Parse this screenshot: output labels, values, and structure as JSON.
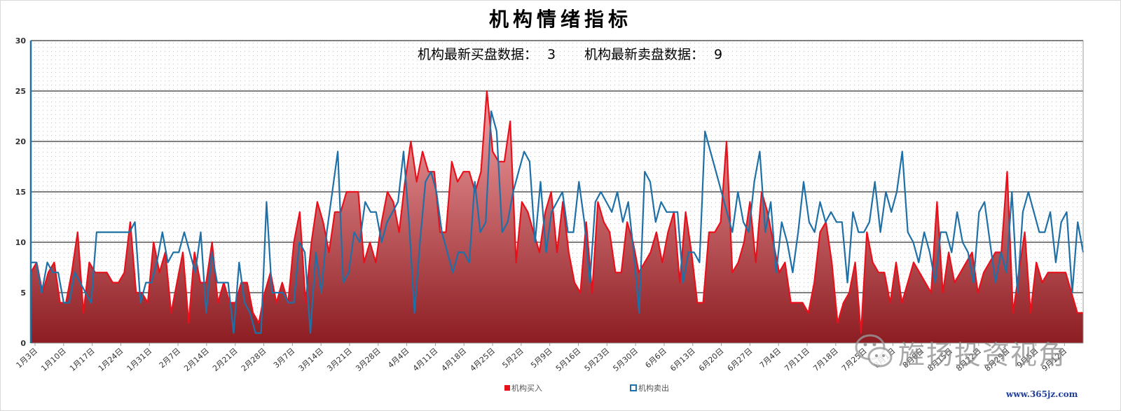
{
  "title": "机构情绪指标",
  "subtitle": {
    "buy_label": "机构最新买盘数据：",
    "buy_value": "3",
    "sell_label": "机构最新卖盘数据：",
    "sell_value": "9"
  },
  "watermark": {
    "name": "旌扬投资视角",
    "site": "www.365jz.com"
  },
  "colors": {
    "buy": "#e8101a",
    "buy_fill_top": "#f6a3a6",
    "buy_fill_bottom": "#8c1d22",
    "sell": "#1f70a6"
  },
  "chart_data": {
    "type": "area",
    "ylim": [
      0,
      30
    ],
    "yticks": [
      0,
      5,
      10,
      15,
      20,
      25,
      30
    ],
    "grid": true,
    "legend": "bottom",
    "xticks": [
      "1月3日",
      "1月10日",
      "1月17日",
      "1月24日",
      "1月31日",
      "2月7日",
      "2月14日",
      "2月21日",
      "2月28日",
      "3月7日",
      "3月14日",
      "3月21日",
      "3月28日",
      "4月4日",
      "4月11日",
      "4月18日",
      "4月25日",
      "5月2日",
      "5月9日",
      "5月16日",
      "5月23日",
      "5月30日",
      "6月6日",
      "6月13日",
      "6月20日",
      "6月27日",
      "7月4日",
      "7月11日",
      "7月18日",
      "7月25日",
      "8月1日",
      "8月8日",
      "8月15日",
      "8月22日",
      "8月29日",
      "9月5日",
      "9月12日"
    ],
    "series": [
      {
        "name": "机构买入",
        "type": "area",
        "values": [
          7,
          8,
          5,
          7,
          8,
          4,
          4,
          7,
          11,
          3,
          8,
          7,
          7,
          7,
          6,
          6,
          7,
          12,
          5,
          5,
          4,
          10,
          7,
          9,
          3,
          6,
          9,
          2,
          9,
          6,
          6,
          10,
          4,
          6,
          4,
          4,
          6,
          6,
          3,
          2,
          5,
          7,
          4,
          6,
          4,
          10,
          13,
          4,
          10,
          14,
          12,
          9,
          13,
          13,
          15,
          15,
          15,
          8,
          10,
          8,
          12,
          15,
          14,
          11,
          16,
          20,
          16,
          19,
          17,
          17,
          11,
          11,
          18,
          16,
          17,
          17,
          15,
          17,
          25,
          19,
          18,
          18,
          22,
          8,
          14,
          13,
          11,
          9,
          13,
          15,
          9,
          14,
          9,
          6,
          5,
          12,
          5,
          14,
          12,
          11,
          7,
          7,
          12,
          10,
          7,
          8,
          9,
          11,
          8,
          11,
          13,
          6,
          13,
          9,
          4,
          4,
          11,
          11,
          12,
          20,
          7,
          8,
          10,
          14,
          8,
          15,
          13,
          10,
          7,
          8,
          4,
          4,
          4,
          3,
          6,
          11,
          12,
          8,
          2,
          4,
          5,
          8,
          1,
          11,
          8,
          7,
          7,
          4,
          8,
          4,
          6,
          8,
          7,
          6,
          5,
          14,
          5,
          9,
          6,
          7,
          8,
          9,
          5,
          7,
          8,
          9,
          9,
          17,
          3,
          7,
          11,
          3,
          8,
          6,
          7,
          7,
          7,
          7,
          5,
          3,
          3
        ],
        "latest": 3
      },
      {
        "name": "机构卖出",
        "type": "line",
        "values": [
          8,
          8,
          5,
          8,
          7,
          7,
          4,
          4,
          7,
          6,
          5,
          4,
          11,
          11,
          11,
          11,
          11,
          11,
          11,
          12,
          4,
          6,
          6,
          8,
          11,
          8,
          9,
          9,
          11,
          9,
          7,
          11,
          3,
          9,
          6,
          6,
          6,
          1,
          8,
          4,
          3,
          1,
          1,
          14,
          5,
          5,
          5,
          4,
          4,
          10,
          9,
          1,
          9,
          5,
          11,
          15,
          19,
          6,
          7,
          11,
          10,
          14,
          13,
          13,
          10,
          12,
          13,
          14,
          19,
          12,
          3,
          10,
          16,
          17,
          15,
          11,
          9,
          7,
          9,
          9,
          8,
          16,
          11,
          12,
          23,
          21,
          11,
          12,
          15,
          17,
          19,
          18,
          10,
          16,
          9,
          13,
          14,
          15,
          11,
          11,
          16,
          12,
          6,
          14,
          15,
          14,
          13,
          15,
          12,
          14,
          9,
          3,
          17,
          16,
          12,
          14,
          13,
          13,
          13,
          6,
          9,
          9,
          8,
          21,
          19,
          17,
          15,
          13,
          11,
          15,
          12,
          11,
          16,
          19,
          11,
          14,
          7,
          12,
          10,
          7,
          11,
          16,
          12,
          11,
          14,
          12,
          13,
          12,
          12,
          6,
          13,
          11,
          11,
          12,
          16,
          11,
          15,
          13,
          15,
          19,
          11,
          10,
          8,
          11,
          9,
          6,
          11,
          11,
          9,
          13,
          10,
          9,
          6,
          13,
          14,
          10,
          6,
          9,
          7,
          15,
          5,
          13,
          15,
          13,
          11,
          11,
          13,
          8,
          12,
          13,
          5,
          12,
          9
        ],
        "latest": 9
      }
    ]
  }
}
